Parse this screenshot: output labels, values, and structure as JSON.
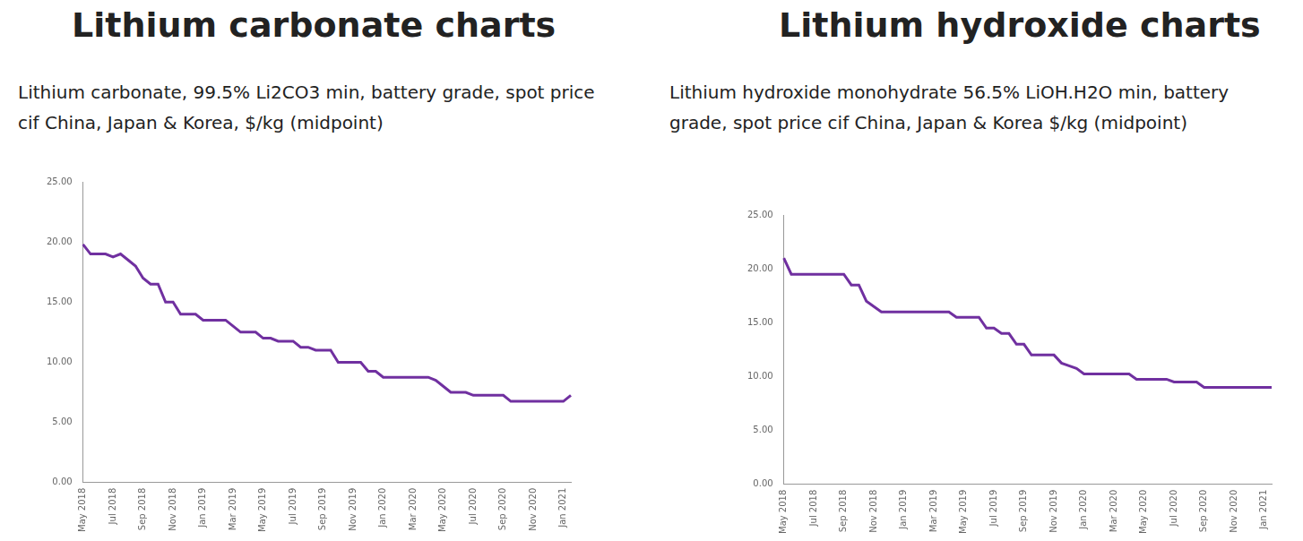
{
  "chart_data": [
    {
      "type": "line",
      "title": "Lithium carbonate charts",
      "subtitle": "Lithium carbonate, 99.5% Li2CO3 min, battery grade, spot price cif China, Japan & Korea, $/kg (midpoint)",
      "categories": [
        "May 2018",
        null,
        null,
        null,
        "Jul 2018",
        null,
        null,
        null,
        "Sep 2018",
        null,
        null,
        null,
        "Nov 2018",
        null,
        null,
        null,
        "Jan 2019",
        null,
        null,
        null,
        "Mar 2019",
        null,
        null,
        null,
        "May 2019",
        null,
        null,
        null,
        "Jul 2019",
        null,
        null,
        null,
        "Sep 2019",
        null,
        null,
        null,
        "Nov 2019",
        null,
        null,
        null,
        "Jan 2020",
        null,
        null,
        null,
        "Mar 2020",
        null,
        null,
        null,
        "May 2020",
        null,
        null,
        null,
        "Jul 2020",
        null,
        null,
        null,
        "Sep 2020",
        null,
        null,
        null,
        "Nov 2020",
        null,
        null,
        null,
        "Jan 2021",
        null
      ],
      "values": [
        19.8,
        19.0,
        19.0,
        19.0,
        18.75,
        19.0,
        18.5,
        18.0,
        17.0,
        16.5,
        16.5,
        15.0,
        15.0,
        14.0,
        14.0,
        14.0,
        13.5,
        13.5,
        13.5,
        13.5,
        13.0,
        12.5,
        12.5,
        12.5,
        12.0,
        12.0,
        11.75,
        11.75,
        11.75,
        11.25,
        11.25,
        11.0,
        11.0,
        11.0,
        10.0,
        10.0,
        10.0,
        10.0,
        9.25,
        9.25,
        8.75,
        8.75,
        8.75,
        8.75,
        8.75,
        8.75,
        8.75,
        8.5,
        8.0,
        7.5,
        7.5,
        7.5,
        7.25,
        7.25,
        7.25,
        7.25,
        7.25,
        6.75,
        6.75,
        6.75,
        6.75,
        6.75,
        6.75,
        6.75,
        6.75,
        7.25
      ],
      "color": "#7030a0",
      "ylim": [
        0,
        25
      ],
      "yticks": [
        {
          "value": 0,
          "label": "0.00"
        },
        {
          "value": 5,
          "label": "5.00"
        },
        {
          "value": 10,
          "label": "10.00"
        },
        {
          "value": 15,
          "label": "15.00"
        },
        {
          "value": 20,
          "label": "20.00"
        },
        {
          "value": 25,
          "label": "25.00"
        }
      ],
      "grid": false
    },
    {
      "type": "line",
      "title": "Lithium hydroxide charts",
      "subtitle": "Lithium hydroxide monohydrate 56.5% LiOH.H2O min, battery grade, spot price cif China, Japan & Korea $/kg (midpoint)",
      "categories": [
        "May 2018",
        null,
        null,
        null,
        "Jul 2018",
        null,
        null,
        null,
        "Sep 2018",
        null,
        null,
        null,
        "Nov 2018",
        null,
        null,
        null,
        "Jan 2019",
        null,
        null,
        null,
        "Mar 2019",
        null,
        null,
        null,
        "May 2019",
        null,
        null,
        null,
        "Jul 2019",
        null,
        null,
        null,
        "Sep 2019",
        null,
        null,
        null,
        "Nov 2019",
        null,
        null,
        null,
        "Jan 2020",
        null,
        null,
        null,
        "Mar 2020",
        null,
        null,
        null,
        "May 2020",
        null,
        null,
        null,
        "Jul 2020",
        null,
        null,
        null,
        "Sep 2020",
        null,
        null,
        null,
        "Nov 2020",
        null,
        null,
        null,
        "Jan 2021",
        null
      ],
      "values": [
        21.0,
        19.5,
        19.5,
        19.5,
        19.5,
        19.5,
        19.5,
        19.5,
        19.5,
        18.5,
        18.5,
        17.0,
        16.5,
        16.0,
        16.0,
        16.0,
        16.0,
        16.0,
        16.0,
        16.0,
        16.0,
        16.0,
        16.0,
        15.5,
        15.5,
        15.5,
        15.5,
        14.5,
        14.5,
        14.0,
        14.0,
        13.0,
        13.0,
        12.0,
        12.0,
        12.0,
        12.0,
        11.25,
        11.0,
        10.75,
        10.25,
        10.25,
        10.25,
        10.25,
        10.25,
        10.25,
        10.25,
        9.75,
        9.75,
        9.75,
        9.75,
        9.75,
        9.5,
        9.5,
        9.5,
        9.5,
        9.0,
        9.0,
        9.0,
        9.0,
        9.0,
        9.0,
        9.0,
        9.0,
        9.0,
        9.0
      ],
      "color": "#7030a0",
      "ylim": [
        0,
        25
      ],
      "yticks": [
        {
          "value": 0,
          "label": "0.00"
        },
        {
          "value": 5,
          "label": "5.00"
        },
        {
          "value": 10,
          "label": "10.00"
        },
        {
          "value": 15,
          "label": "15.00"
        },
        {
          "value": 20,
          "label": "20.00"
        },
        {
          "value": 25,
          "label": "25.00"
        }
      ],
      "grid": false
    }
  ]
}
